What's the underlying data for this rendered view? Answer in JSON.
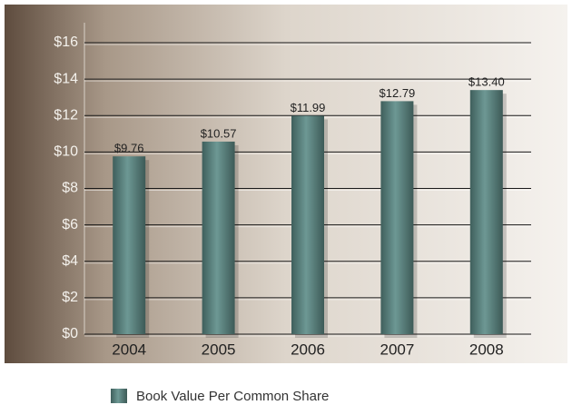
{
  "chart_data": {
    "type": "bar",
    "categories": [
      "2004",
      "2005",
      "2006",
      "2007",
      "2008"
    ],
    "values": [
      9.76,
      10.57,
      11.99,
      12.79,
      13.4
    ],
    "value_labels": [
      "$9.76",
      "$10.57",
      "$11.99",
      "$12.79",
      "$13.40"
    ],
    "series_name": "Book Value Per Common Share",
    "color": "#5f8a86",
    "ylim": [
      0,
      16
    ],
    "yticks": [
      {
        "value": 0,
        "label": "$0"
      },
      {
        "value": 2,
        "label": "$2"
      },
      {
        "value": 4,
        "label": "$4"
      },
      {
        "value": 6,
        "label": "$6"
      },
      {
        "value": 8,
        "label": "$8"
      },
      {
        "value": 10,
        "label": "$10"
      },
      {
        "value": 12,
        "label": "$12"
      },
      {
        "value": 14,
        "label": "$14"
      },
      {
        "value": 16,
        "label": "$16"
      }
    ],
    "grid": true
  }
}
